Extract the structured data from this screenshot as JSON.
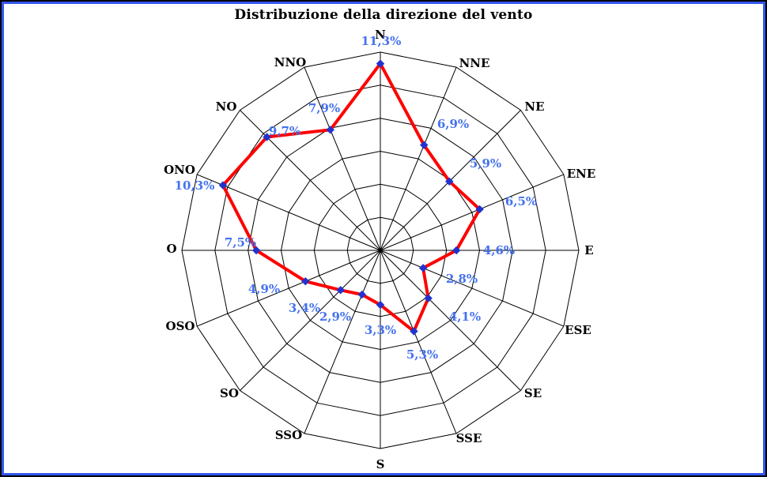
{
  "chart_data": {
    "type": "radar",
    "title": "Distribuzione della direzione del vento",
    "categories": [
      "N",
      "NNE",
      "NE",
      "ENE",
      "E",
      "ESE",
      "SE",
      "SSE",
      "S",
      "SSO",
      "SO",
      "OSO",
      "O",
      "ONO",
      "NO",
      "NNO"
    ],
    "series": [
      {
        "name": "Distribuzione della direzione del vento",
        "values": [
          11.3,
          6.9,
          5.9,
          6.5,
          4.6,
          2.8,
          4.1,
          5.3,
          3.3,
          2.9,
          3.4,
          4.9,
          7.5,
          10.3,
          9.7,
          7.9
        ]
      }
    ],
    "value_labels": [
      "11,3%",
      "6,9%",
      "5,9%",
      "6,5%",
      "4,6%",
      "2,8%",
      "4,1%",
      "5,3%",
      "3,3%",
      "2,9%",
      "3,4%",
      "4,9%",
      "7,5%",
      "10,3%",
      "9,7%",
      "7,9%"
    ],
    "unit": "%",
    "axis": {
      "r_min": 0,
      "r_max": 12,
      "ring_step": 2,
      "rings": 6,
      "tick_labels_shown": false
    },
    "grid": "polygonal",
    "legend": "none",
    "colors": {
      "line": "#ff0000",
      "marker": "#2233cc",
      "value_label": "#4472ee",
      "grid_line": "#000000",
      "direction_label": "#000000",
      "frame_outer": "#000000",
      "frame_inner": "#3355ee",
      "background": "#ffffff"
    }
  }
}
